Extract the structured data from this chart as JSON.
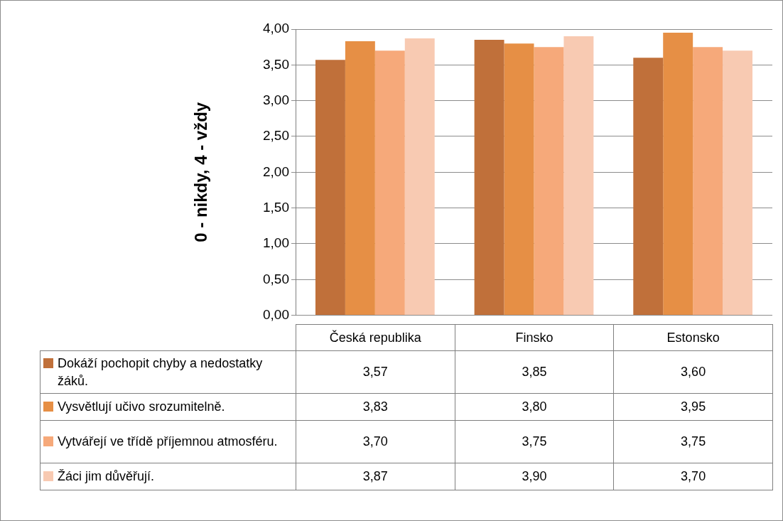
{
  "chart_data": {
    "type": "bar",
    "ylabel": "0 - nikdy, 4 - vždy",
    "categories": [
      "Česká republika",
      "Finsko",
      "Estonsko"
    ],
    "series": [
      {
        "name": "Dokáží pochopit chyby a nedostatky žáků.",
        "color": "#c0703a",
        "values": [
          3.57,
          3.85,
          3.6
        ],
        "value_labels": [
          "3,57",
          "3,85",
          "3,60"
        ]
      },
      {
        "name": "Vysvětlují učivo srozumitelně.",
        "color": "#e68f45",
        "values": [
          3.83,
          3.8,
          3.95
        ],
        "value_labels": [
          "3,83",
          "3,80",
          "3,95"
        ]
      },
      {
        "name": "Vytvářejí ve třídě příjemnou atmosféru.",
        "color": "#f6a97a",
        "values": [
          3.7,
          3.75,
          3.75
        ],
        "value_labels": [
          "3,70",
          "3,75",
          "3,75"
        ]
      },
      {
        "name": "Žáci jim důvěřují.",
        "color": "#f8cab2",
        "values": [
          3.87,
          3.9,
          3.7
        ],
        "value_labels": [
          "3,87",
          "3,90",
          "3,70"
        ]
      }
    ],
    "ylim": [
      0,
      4
    ],
    "yticks": [
      {
        "value": 0,
        "label": "0,00"
      },
      {
        "value": 0.5,
        "label": "0,50"
      },
      {
        "value": 1,
        "label": "1,00"
      },
      {
        "value": 1.5,
        "label": "1,50"
      },
      {
        "value": 2,
        "label": "2,00"
      },
      {
        "value": 2.5,
        "label": "2,50"
      },
      {
        "value": 3,
        "label": "3,00"
      },
      {
        "value": 3.5,
        "label": "3,50"
      },
      {
        "value": 4,
        "label": "4,00"
      }
    ],
    "grid": "y",
    "legend": "bottom"
  }
}
